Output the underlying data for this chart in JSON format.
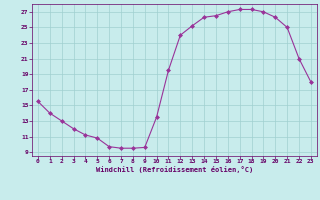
{
  "x": [
    0,
    1,
    2,
    3,
    4,
    5,
    6,
    7,
    8,
    9,
    10,
    11,
    12,
    13,
    14,
    15,
    16,
    17,
    18,
    19,
    20,
    21,
    22,
    23
  ],
  "y": [
    15.5,
    14.0,
    13.0,
    12.0,
    11.2,
    10.8,
    9.7,
    9.5,
    9.5,
    9.6,
    13.5,
    19.5,
    24.0,
    25.2,
    26.3,
    26.5,
    27.0,
    27.3,
    27.3,
    27.0,
    26.3,
    25.0,
    21.0,
    18.0
  ],
  "line_color": "#993399",
  "marker": "D",
  "marker_size": 2.0,
  "bg_color": "#c8ecec",
  "grid_color": "#a0d0d0",
  "xlabel": "Windchill (Refroidissement éolien,°C)",
  "xlabel_color": "#660066",
  "tick_color": "#660066",
  "xlim": [
    -0.5,
    23.5
  ],
  "ylim": [
    8.5,
    28.0
  ],
  "yticks": [
    9,
    11,
    13,
    15,
    17,
    19,
    21,
    23,
    25,
    27
  ],
  "xticks": [
    0,
    1,
    2,
    3,
    4,
    5,
    6,
    7,
    8,
    9,
    10,
    11,
    12,
    13,
    14,
    15,
    16,
    17,
    18,
    19,
    20,
    21,
    22,
    23
  ],
  "figsize": [
    3.2,
    2.0
  ],
  "dpi": 100
}
